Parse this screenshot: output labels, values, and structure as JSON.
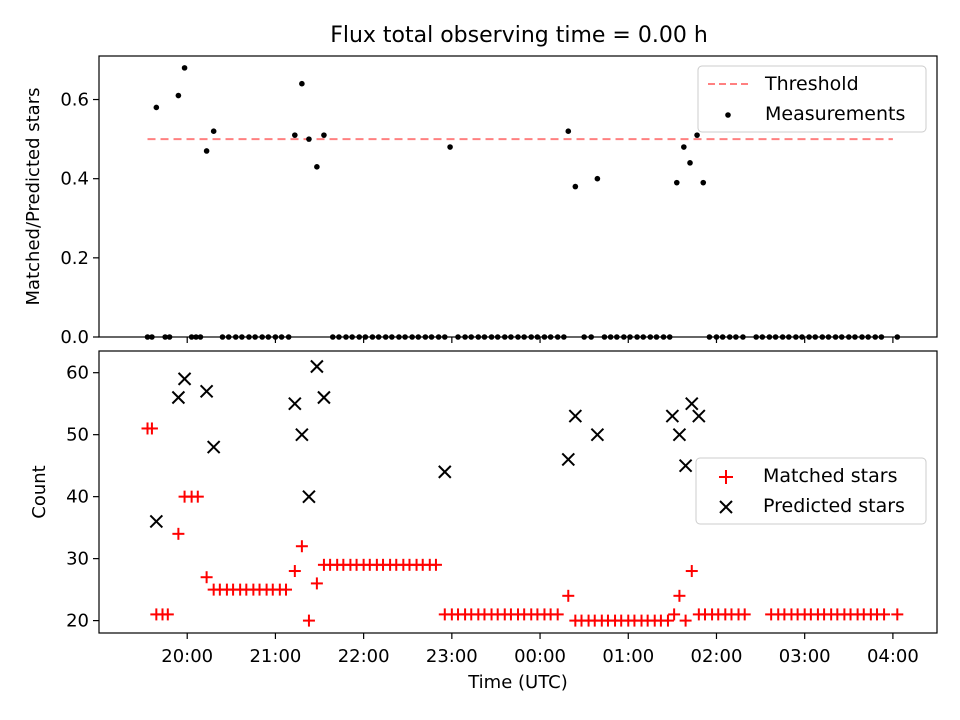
{
  "chart_data": [
    {
      "type": "scatter",
      "title": "Flux total observing time = 0.00 h",
      "ylabel": "Matched/Predicted stars",
      "xlabel": "",
      "ylim": [
        0,
        0.71
      ],
      "yticks": [
        0.0,
        0.2,
        0.4,
        0.6
      ],
      "ytick_labels": [
        "0.0",
        "0.2",
        "0.4",
        "0.6"
      ],
      "grid": false,
      "legend_position": "top-right",
      "threshold": {
        "name": "Threshold",
        "value": 0.5,
        "x_start": 19.55,
        "x_end": 28.0,
        "color": "#ff8080",
        "style": "dashed"
      },
      "series": [
        {
          "name": "Measurements",
          "color": "#000000",
          "marker": "dot",
          "x": [
            19.55,
            19.6,
            19.65,
            19.75,
            19.8,
            19.9,
            19.97,
            20.05,
            20.1,
            20.15,
            20.22,
            20.3,
            20.4,
            20.47,
            20.55,
            20.62,
            20.7,
            20.77,
            20.85,
            20.92,
            21.0,
            21.07,
            21.15,
            21.22,
            21.3,
            21.38,
            21.47,
            21.55,
            21.65,
            21.72,
            21.8,
            21.87,
            21.95,
            22.02,
            22.1,
            22.17,
            22.25,
            22.32,
            22.4,
            22.47,
            22.55,
            22.62,
            22.7,
            22.77,
            22.85,
            22.92,
            22.98,
            23.07,
            23.15,
            23.22,
            23.3,
            23.37,
            23.45,
            23.52,
            23.6,
            23.67,
            23.75,
            23.82,
            23.9,
            23.97,
            24.05,
            24.12,
            24.2,
            24.27,
            24.32,
            24.4,
            24.5,
            24.58,
            24.65,
            24.73,
            24.8,
            24.87,
            24.95,
            25.02,
            25.1,
            25.17,
            25.25,
            25.32,
            25.4,
            25.47,
            25.55,
            25.63,
            25.7,
            25.78,
            25.85,
            25.92,
            26.0,
            26.07,
            26.15,
            26.22,
            26.3,
            26.45,
            26.52,
            26.6,
            26.67,
            26.75,
            26.82,
            26.9,
            26.97,
            27.05,
            27.12,
            27.2,
            27.27,
            27.35,
            27.42,
            27.5,
            27.57,
            27.65,
            27.72,
            27.8,
            27.87,
            28.05
          ],
          "y": [
            0.0,
            0.0,
            0.58,
            0.0,
            0.0,
            0.61,
            0.68,
            0.0,
            0.0,
            0.0,
            0.47,
            0.52,
            0.0,
            0.0,
            0.0,
            0.0,
            0.0,
            0.0,
            0.0,
            0.0,
            0.0,
            0.0,
            0.0,
            0.51,
            0.64,
            0.5,
            0.43,
            0.51,
            0.0,
            0.0,
            0.0,
            0.0,
            0.0,
            0.0,
            0.0,
            0.0,
            0.0,
            0.0,
            0.0,
            0.0,
            0.0,
            0.0,
            0.0,
            0.0,
            0.0,
            0.0,
            0.48,
            0.0,
            0.0,
            0.0,
            0.0,
            0.0,
            0.0,
            0.0,
            0.0,
            0.0,
            0.0,
            0.0,
            0.0,
            0.0,
            0.0,
            0.0,
            0.0,
            0.0,
            0.52,
            0.38,
            0.0,
            0.0,
            0.4,
            0.0,
            0.0,
            0.0,
            0.0,
            0.0,
            0.0,
            0.0,
            0.0,
            0.0,
            0.0,
            0.0,
            0.39,
            0.48,
            0.44,
            0.51,
            0.39,
            0.0,
            0.0,
            0.0,
            0.0,
            0.0,
            0.0,
            0.0,
            0.0,
            0.0,
            0.0,
            0.0,
            0.0,
            0.0,
            0.0,
            0.0,
            0.0,
            0.0,
            0.0,
            0.0,
            0.0,
            0.0,
            0.0,
            0.0,
            0.0,
            0.0,
            0.0,
            0.0
          ]
        }
      ],
      "legend_entries": [
        "Threshold",
        "Measurements"
      ]
    },
    {
      "type": "scatter",
      "title": "",
      "ylabel": "Count",
      "xlabel": "Time (UTC)",
      "ylim": [
        18,
        63.5
      ],
      "yticks": [
        20,
        30,
        40,
        50,
        60
      ],
      "ytick_labels": [
        "20",
        "30",
        "40",
        "50",
        "60"
      ],
      "xticks": [
        20,
        21,
        22,
        23,
        24,
        25,
        26,
        27,
        28
      ],
      "xtick_labels": [
        "20:00",
        "21:00",
        "22:00",
        "23:00",
        "00:00",
        "01:00",
        "02:00",
        "03:00",
        "04:00"
      ],
      "xlim": [
        19.0,
        28.5
      ],
      "grid": false,
      "legend_position": "center-right",
      "series": [
        {
          "name": "Matched stars",
          "color": "#ff0000",
          "marker": "plus",
          "x": [
            19.55,
            19.6,
            19.65,
            19.72,
            19.78,
            19.9,
            19.97,
            20.05,
            20.12,
            20.22,
            20.3,
            20.37,
            20.45,
            20.52,
            20.6,
            20.67,
            20.75,
            20.82,
            20.9,
            20.97,
            21.05,
            21.12,
            21.22,
            21.3,
            21.38,
            21.47,
            21.55,
            21.62,
            21.7,
            21.77,
            21.85,
            21.92,
            22.0,
            22.07,
            22.15,
            22.22,
            22.3,
            22.37,
            22.45,
            22.52,
            22.6,
            22.67,
            22.75,
            22.82,
            22.92,
            23.0,
            23.07,
            23.15,
            23.22,
            23.3,
            23.37,
            23.45,
            23.52,
            23.6,
            23.67,
            23.75,
            23.82,
            23.9,
            23.97,
            24.05,
            24.12,
            24.2,
            24.32,
            24.4,
            24.47,
            24.55,
            24.62,
            24.7,
            24.77,
            24.85,
            24.92,
            25.0,
            25.07,
            25.15,
            25.22,
            25.3,
            25.37,
            25.45,
            25.52,
            25.58,
            25.65,
            25.72,
            25.8,
            25.87,
            25.95,
            26.02,
            26.1,
            26.17,
            26.25,
            26.32,
            26.62,
            26.7,
            26.77,
            26.85,
            26.92,
            27.0,
            27.07,
            27.15,
            27.22,
            27.3,
            27.37,
            27.45,
            27.52,
            27.6,
            27.67,
            27.75,
            27.82,
            27.9,
            28.05
          ],
          "y": [
            51,
            51,
            21,
            21,
            21,
            34,
            40,
            40,
            40,
            27,
            25,
            25,
            25,
            25,
            25,
            25,
            25,
            25,
            25,
            25,
            25,
            25,
            28,
            32,
            20,
            26,
            29,
            29,
            29,
            29,
            29,
            29,
            29,
            29,
            29,
            29,
            29,
            29,
            29,
            29,
            29,
            29,
            29,
            29,
            21,
            21,
            21,
            21,
            21,
            21,
            21,
            21,
            21,
            21,
            21,
            21,
            21,
            21,
            21,
            21,
            21,
            21,
            24,
            20,
            20,
            20,
            20,
            20,
            20,
            20,
            20,
            20,
            20,
            20,
            20,
            20,
            20,
            20,
            21,
            24,
            20,
            28,
            21,
            21,
            21,
            21,
            21,
            21,
            21,
            21,
            21,
            21,
            21,
            21,
            21,
            21,
            21,
            21,
            21,
            21,
            21,
            21,
            21,
            21,
            21,
            21,
            21,
            21,
            21
          ]
        },
        {
          "name": "Predicted stars",
          "color": "#000000",
          "marker": "x",
          "x": [
            19.65,
            19.9,
            19.97,
            20.22,
            20.3,
            21.22,
            21.3,
            21.38,
            21.47,
            21.55,
            22.92,
            24.32,
            24.4,
            24.65,
            25.5,
            25.58,
            25.65,
            25.72,
            25.8
          ],
          "y": [
            36,
            56,
            59,
            57,
            48,
            55,
            50,
            40,
            61,
            56,
            44,
            46,
            53,
            50,
            53,
            50,
            45,
            55,
            53
          ]
        }
      ],
      "legend_entries": [
        "Matched stars",
        "Predicted stars"
      ]
    }
  ]
}
